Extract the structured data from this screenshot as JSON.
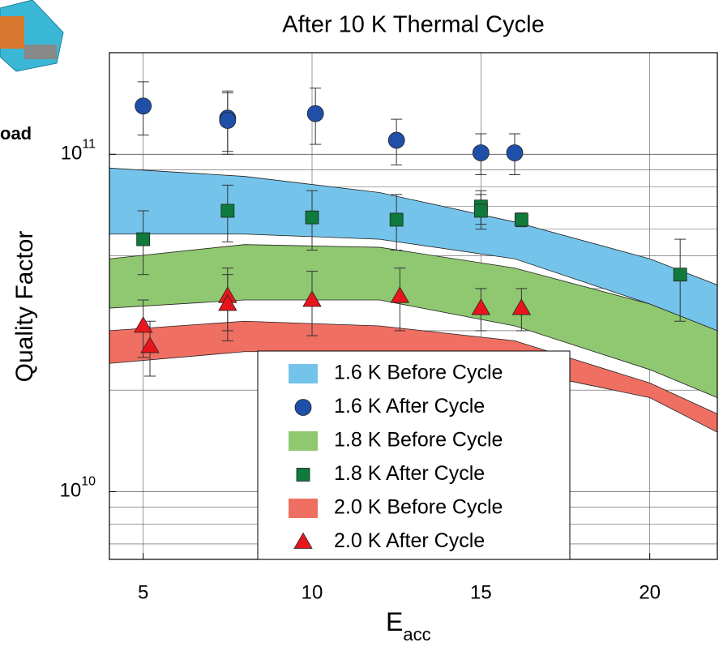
{
  "chart_data": {
    "type": "band-scatter",
    "title": "After 10 K Thermal Cycle",
    "y_label": "Quality Factor",
    "x_label": "E",
    "x_label_sub": "acc",
    "side_text": "oad",
    "xlim": [
      4,
      22
    ],
    "xticks": [
      5,
      10,
      15,
      20
    ],
    "ylim": [
      6300000000,
      200000000000
    ],
    "log_y": true,
    "grid": true,
    "minor_grid": true,
    "yticks": [
      {
        "value": 10000000000,
        "label": "10",
        "exponent": "10"
      },
      {
        "value": 100000000000,
        "label": "10",
        "exponent": "11"
      }
    ],
    "series": [
      {
        "name": "1.6 K Before Cycle",
        "kind": "band",
        "color": "#74c3ea",
        "x": [
          4,
          8,
          12,
          16,
          20,
          22
        ],
        "upper": [
          91000000000,
          86000000000,
          77000000000,
          63000000000,
          49000000000,
          41000000000
        ],
        "lower": [
          58000000000,
          58000000000,
          56000000000,
          49000000000,
          36000000000,
          30000000000
        ]
      },
      {
        "name": "1.6 K After Cycle",
        "kind": "points",
        "marker": "circle",
        "color": "#1f4fa8",
        "x": [
          5.0,
          7.5,
          7.5,
          10.1,
          12.5,
          15.0,
          16.0
        ],
        "values": [
          139000000000,
          128000000000,
          126000000000,
          132000000000,
          110000000000,
          101000000000,
          101000000000
        ],
        "errors": [
          25000000000,
          26000000000,
          26000000000,
          25000000000,
          17000000000,
          14000000000,
          14000000000
        ]
      },
      {
        "name": "1.8 K Before Cycle",
        "kind": "band",
        "color": "#8fc870",
        "x": [
          4,
          8,
          12,
          16,
          20,
          22
        ],
        "upper": [
          49000000000,
          54000000000,
          53000000000,
          46000000000,
          36000000000,
          30000000000
        ],
        "lower": [
          35000000000,
          37000000000,
          37000000000,
          31000000000,
          23000000000,
          19000000000
        ]
      },
      {
        "name": "1.8 K After Cycle",
        "kind": "points",
        "marker": "square",
        "color": "#0e7a3b",
        "x": [
          5.0,
          7.5,
          10.0,
          12.5,
          15.0,
          15.0,
          16.2,
          20.9
        ],
        "values": [
          56000000000,
          68000000000,
          65000000000,
          64000000000,
          70000000000,
          68000000000,
          64000000000,
          44000000000
        ],
        "errors": [
          12000000000,
          13000000000,
          13000000000,
          12000000000,
          8000000000,
          8000000000,
          3000000000,
          12000000000
        ]
      },
      {
        "name": "2.0 K Before Cycle",
        "kind": "band",
        "color": "#ef6f63",
        "x": [
          4,
          8,
          12,
          16,
          20,
          22
        ],
        "upper": [
          30000000000,
          32000000000,
          31000000000,
          28000000000,
          21000000000,
          17000000000
        ],
        "lower": [
          24000000000,
          26000000000,
          26000000000,
          23000000000,
          19000000000,
          15000000000
        ]
      },
      {
        "name": "2.0 K After Cycle",
        "kind": "points",
        "marker": "triangle",
        "color": "#e8161c",
        "x": [
          5.0,
          5.2,
          7.5,
          7.5,
          10.0,
          12.6,
          15.0,
          16.2
        ],
        "values": [
          31000000000,
          27000000000,
          38000000000,
          36000000000,
          37000000000,
          38000000000,
          35000000000,
          35000000000
        ],
        "errors": [
          6000000000,
          5000000000,
          8000000000,
          8000000000,
          8000000000,
          8000000000,
          5000000000,
          5000000000
        ]
      }
    ]
  }
}
